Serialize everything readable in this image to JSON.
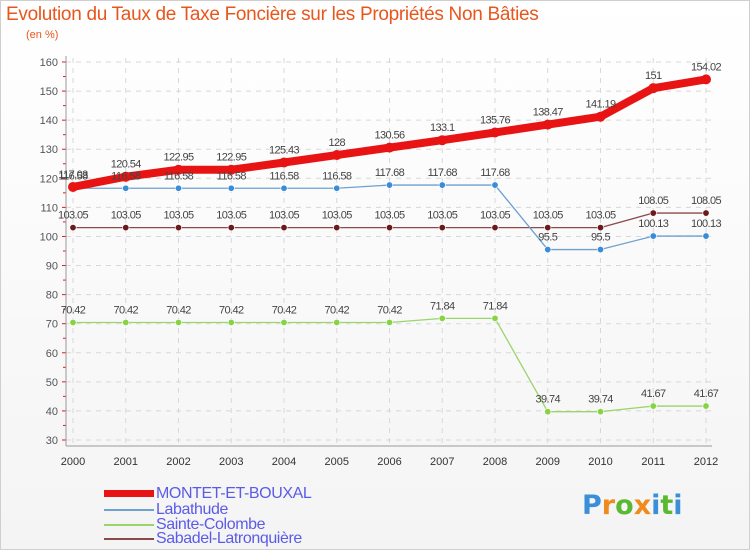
{
  "title": "Evolution du Taux de Taxe Foncière sur les Propriétés Non Bâties",
  "unit_label": "(en %)",
  "logo": {
    "letters": [
      "P",
      "r",
      "o",
      "x",
      "i",
      "t",
      "i"
    ],
    "colors": [
      "#3b8fd8",
      "#f08a1c",
      "#5bb832",
      "#f08a1c",
      "#3b8fd8",
      "#5bb832",
      "#3b8fd8"
    ]
  },
  "chart_data": {
    "type": "line",
    "title": "Evolution du Taux de Taxe Foncière sur les Propriétés Non Bâties",
    "ylabel": "(en %)",
    "xlabel": "",
    "x": [
      "2000",
      "2001",
      "2002",
      "2003",
      "2004",
      "2005",
      "2006",
      "2007",
      "2008",
      "2009",
      "2010",
      "2011",
      "2012"
    ],
    "ylim": [
      30,
      160
    ],
    "yticks": [
      30,
      40,
      50,
      60,
      70,
      80,
      90,
      100,
      110,
      120,
      130,
      140,
      150,
      160
    ],
    "grid": true,
    "series": [
      {
        "name": "MONTET-ET-BOUXAL",
        "color": "#e81414",
        "width": 8,
        "marker_fill": "#e81414",
        "values": [
          117.03,
          120.54,
          122.95,
          122.95,
          125.43,
          128,
          130.56,
          133.1,
          135.76,
          138.47,
          141.19,
          151,
          154.02
        ],
        "labels": [
          "117.03",
          "120.54",
          "122.95",
          "122.95",
          "125.43",
          "128",
          "130.56",
          "133.1",
          "135.76",
          "138.47",
          "141.19",
          "151",
          "154.02"
        ]
      },
      {
        "name": "Labathude",
        "color": "#6fa0d0",
        "width": 1.3,
        "marker_fill": "#3a8cd8",
        "values": [
          116.58,
          116.58,
          116.58,
          116.58,
          116.58,
          116.58,
          117.68,
          117.68,
          117.68,
          95.5,
          95.5,
          100.13,
          100.13
        ],
        "labels": [
          "116.58",
          "116.58",
          "116.58",
          "116.58",
          "116.58",
          "116.58",
          "117.68",
          "117.68",
          "117.68",
          "95.5",
          "95.5",
          "100.13",
          "100.13"
        ]
      },
      {
        "name": "Sainte-Colombe",
        "color": "#9ad46a",
        "width": 1.3,
        "marker_fill": "#86d443",
        "values": [
          70.42,
          70.42,
          70.42,
          70.42,
          70.42,
          70.42,
          70.42,
          71.84,
          71.84,
          39.74,
          39.74,
          41.67,
          41.67
        ],
        "labels": [
          "70.42",
          "70.42",
          "70.42",
          "70.42",
          "70.42",
          "70.42",
          "70.42",
          "71.84",
          "71.84",
          "39.74",
          "39.74",
          "41.67",
          "41.67"
        ]
      },
      {
        "name": "Sabadel-Latronquière",
        "color": "#8a4a4a",
        "width": 1.3,
        "marker_fill": "#6a1a1a",
        "values": [
          103.05,
          103.05,
          103.05,
          103.05,
          103.05,
          103.05,
          103.05,
          103.05,
          103.05,
          103.05,
          103.05,
          108.05,
          108.05
        ],
        "labels": [
          "103.05",
          "103.05",
          "103.05",
          "103.05",
          "103.05",
          "103.05",
          "103.05",
          "103.05",
          "103.05",
          "103.05",
          "103.05",
          "108.05",
          "108.05"
        ]
      }
    ]
  }
}
